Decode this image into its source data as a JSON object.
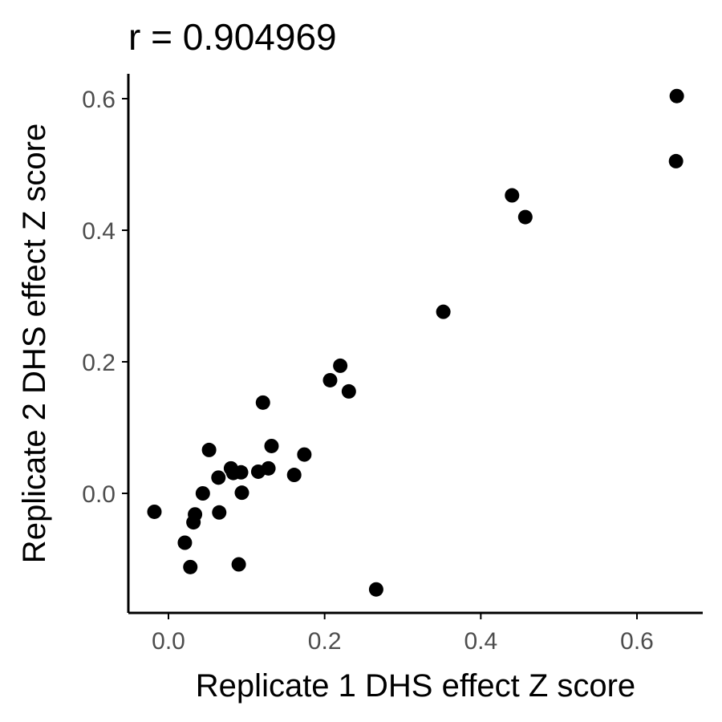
{
  "chart_data": {
    "type": "scatter",
    "title": "r = 0.904969",
    "xlabel": "Replicate 1 DHS effect Z score",
    "ylabel": "Replicate 2 DHS effect Z score",
    "xlim": [
      -0.05,
      0.68
    ],
    "ylim": [
      -0.18,
      0.64
    ],
    "x_ticks": [
      0.0,
      0.2,
      0.4,
      0.6
    ],
    "x_tick_labels": [
      "0.0",
      "0.2",
      "0.4",
      "0.6"
    ],
    "y_ticks": [
      0.0,
      0.2,
      0.4,
      0.6
    ],
    "y_tick_labels": [
      "0.0",
      "0.2",
      "0.4",
      "0.6"
    ],
    "grid": false,
    "legend": false,
    "point_color": "#000000",
    "points": [
      {
        "x": -0.018,
        "y": -0.028
      },
      {
        "x": 0.021,
        "y": -0.075
      },
      {
        "x": 0.028,
        "y": -0.112
      },
      {
        "x": 0.032,
        "y": -0.044
      },
      {
        "x": 0.034,
        "y": -0.032
      },
      {
        "x": 0.044,
        "y": 0.0
      },
      {
        "x": 0.052,
        "y": 0.066
      },
      {
        "x": 0.064,
        "y": 0.024
      },
      {
        "x": 0.065,
        "y": -0.029
      },
      {
        "x": 0.08,
        "y": 0.038
      },
      {
        "x": 0.083,
        "y": 0.031
      },
      {
        "x": 0.09,
        "y": -0.108
      },
      {
        "x": 0.093,
        "y": 0.032
      },
      {
        "x": 0.094,
        "y": 0.001
      },
      {
        "x": 0.115,
        "y": 0.033
      },
      {
        "x": 0.121,
        "y": 0.138
      },
      {
        "x": 0.128,
        "y": 0.038
      },
      {
        "x": 0.132,
        "y": 0.072
      },
      {
        "x": 0.161,
        "y": 0.028
      },
      {
        "x": 0.174,
        "y": 0.059
      },
      {
        "x": 0.207,
        "y": 0.172
      },
      {
        "x": 0.22,
        "y": 0.194
      },
      {
        "x": 0.231,
        "y": 0.155
      },
      {
        "x": 0.266,
        "y": -0.146
      },
      {
        "x": 0.352,
        "y": 0.276
      },
      {
        "x": 0.44,
        "y": 0.453
      },
      {
        "x": 0.457,
        "y": 0.42
      },
      {
        "x": 0.65,
        "y": 0.505
      },
      {
        "x": 0.651,
        "y": 0.604
      }
    ]
  }
}
